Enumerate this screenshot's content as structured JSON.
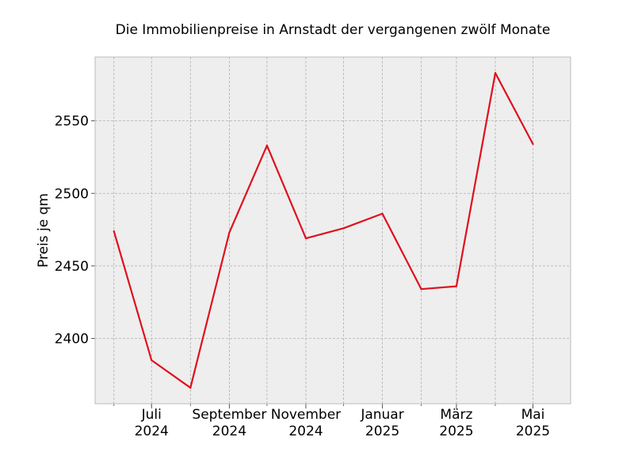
{
  "chart_data": {
    "type": "line",
    "title": "Die Immobilienpreise in Arnstadt der vergangenen zwölf Monate",
    "xlabel": "",
    "ylabel": "Preis je qm",
    "x": [
      "2024-06",
      "2024-07",
      "2024-08",
      "2024-09",
      "2024-10",
      "2024-11",
      "2024-12",
      "2025-01",
      "2025-02",
      "2025-03",
      "2025-04",
      "2025-05"
    ],
    "xlim": [
      "2024-05-17",
      "2025-05-31"
    ],
    "ylim": [
      2355,
      2594
    ],
    "x_major_ticks": [
      {
        "x": "2024-07",
        "line1": "Juli",
        "line2": "2024"
      },
      {
        "x": "2024-09",
        "line1": "September",
        "line2": "2024"
      },
      {
        "x": "2024-11",
        "line1": "November",
        "line2": "2024"
      },
      {
        "x": "2025-01",
        "line1": "Januar",
        "line2": "2025"
      },
      {
        "x": "2025-03",
        "line1": "März",
        "line2": "2025"
      },
      {
        "x": "2025-05",
        "line1": "Mai",
        "line2": "2025"
      }
    ],
    "y_ticks": [
      2400,
      2450,
      2500,
      2550
    ],
    "grid": true,
    "background": "#eeeeee",
    "line_color": "#e0101e",
    "series": [
      {
        "values": [
          2474,
          2385,
          2366,
          2473,
          2533,
          2469,
          2476,
          2486,
          2434,
          2436,
          2583,
          2534
        ]
      }
    ]
  }
}
